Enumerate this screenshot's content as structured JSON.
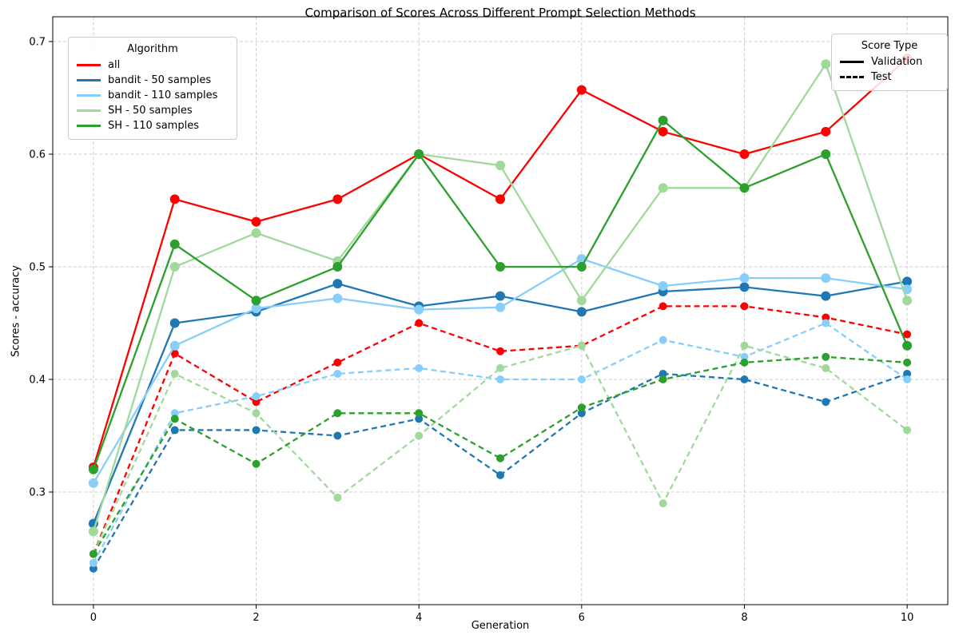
{
  "title": "Comparison of Scores Across Different Prompt Selection Methods",
  "legends": {
    "algorithm": {
      "title": "Algorithm",
      "items": [
        {
          "label": "all"
        },
        {
          "label": "bandit - 50 samples"
        },
        {
          "label": "bandit - 110 samples"
        },
        {
          "label": "SH - 50 samples"
        },
        {
          "label": "SH - 110 samples"
        }
      ]
    },
    "score_type": {
      "title": "Score Type",
      "items": [
        {
          "label": "Validation",
          "style": "solid"
        },
        {
          "label": "Test",
          "style": "dashed"
        }
      ]
    }
  },
  "chart_data": {
    "type": "line",
    "title": "Comparison of Scores Across Different Prompt Selection Methods",
    "xlabel": "Generation",
    "ylabel": "Scores - accuracy",
    "x": [
      0,
      1,
      2,
      3,
      4,
      5,
      6,
      7,
      8,
      9,
      10
    ],
    "x_ticks": [
      0,
      2,
      4,
      6,
      8,
      10
    ],
    "y_ticks": [
      0.3,
      0.4,
      0.5,
      0.6,
      0.7
    ],
    "xlim": [
      -0.5,
      10.5
    ],
    "ylim": [
      0.2,
      0.722
    ],
    "grid": true,
    "grid_color": "#cfcfcf",
    "legend_positions": {
      "algorithm": "upper left",
      "score_type": "upper right"
    },
    "line_styles": {
      "validation": "solid",
      "test": "dashed"
    },
    "algorithms": [
      {
        "name": "all",
        "color": "#ff0000",
        "validation": [
          0.322,
          0.56,
          0.54,
          0.56,
          0.6,
          0.56,
          0.657,
          0.62,
          0.6,
          0.62,
          0.685
        ],
        "test": [
          0.245,
          0.423,
          0.38,
          0.415,
          0.45,
          0.425,
          0.43,
          0.465,
          0.465,
          0.455,
          0.44
        ]
      },
      {
        "name": "bandit - 50 samples",
        "color": "#1f77b4",
        "validation": [
          0.272,
          0.45,
          0.46,
          0.485,
          0.465,
          0.474,
          0.46,
          0.478,
          0.482,
          0.474,
          0.487
        ],
        "test": [
          0.232,
          0.355,
          0.355,
          0.35,
          0.365,
          0.315,
          0.37,
          0.405,
          0.4,
          0.38,
          0.405
        ]
      },
      {
        "name": "bandit - 110 samples",
        "color": "#87cefa",
        "validation": [
          0.308,
          0.43,
          0.463,
          0.472,
          0.462,
          0.464,
          0.507,
          0.483,
          0.49,
          0.49,
          0.48
        ],
        "test": [
          0.237,
          0.37,
          0.385,
          0.405,
          0.41,
          0.4,
          0.4,
          0.435,
          0.42,
          0.45,
          0.4
        ]
      },
      {
        "name": "SH - 50 samples",
        "color": "#a1d99b",
        "validation": [
          0.265,
          0.5,
          0.53,
          0.505,
          0.6,
          0.59,
          0.47,
          0.57,
          0.57,
          0.68,
          0.47
        ],
        "test": [
          0.245,
          0.405,
          0.37,
          0.295,
          0.35,
          0.41,
          0.43,
          0.29,
          0.43,
          0.41,
          0.355
        ]
      },
      {
        "name": "SH - 110 samples",
        "color": "#2ca02c",
        "validation": [
          0.32,
          0.52,
          0.47,
          0.5,
          0.6,
          0.5,
          0.5,
          0.63,
          0.57,
          0.6,
          0.43
        ],
        "test": [
          0.245,
          0.365,
          0.325,
          0.37,
          0.37,
          0.33,
          0.375,
          0.4,
          0.415,
          0.42,
          0.415
        ]
      }
    ]
  }
}
